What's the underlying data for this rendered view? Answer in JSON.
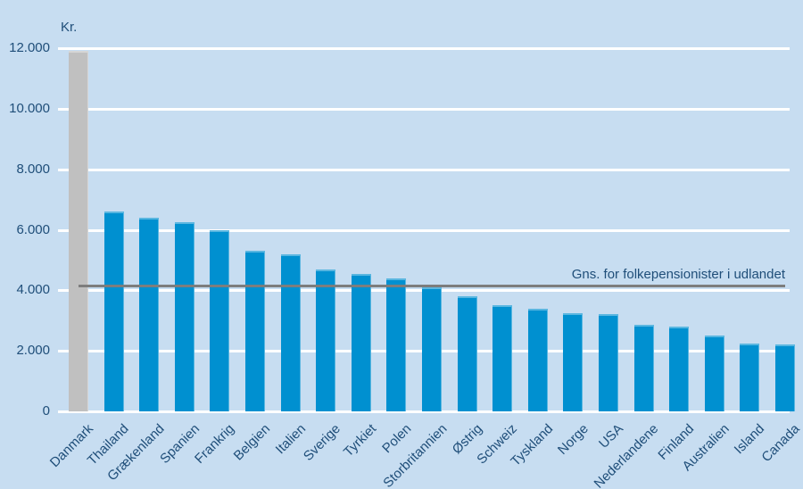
{
  "chart_data": {
    "type": "bar",
    "title": "",
    "unit_label": "Kr.",
    "xlabel": "",
    "ylabel": "Kr.",
    "categories": [
      "Danmark",
      "Thailand",
      "Grækenland",
      "Spanien",
      "Frankrig",
      "Belgien",
      "Italien",
      "Sverige",
      "Tyrkiet",
      "Polen",
      "Storbritannien",
      "Østrig",
      "Schweiz",
      "Tyskland",
      "Norge",
      "USA",
      "Nederlandene",
      "Finland",
      "Australien",
      "Island",
      "Canada"
    ],
    "values": [
      11900,
      6600,
      6400,
      6250,
      6000,
      5300,
      5200,
      4700,
      4550,
      4400,
      4100,
      3800,
      3500,
      3400,
      3250,
      3200,
      2850,
      2800,
      2500,
      2250,
      2200
    ],
    "ylim": [
      0,
      12000
    ],
    "ytick_step": 2000,
    "ytick_labels": [
      "0",
      "2.000",
      "4.000",
      "6.000",
      "8.000",
      "10.000",
      "12.000"
    ],
    "grid": "horizontal, white gridlines, legend none",
    "reference_line": {
      "value": 4150,
      "label": "Gns. for folkepensionister  i udlandet"
    },
    "colors": {
      "background": "#c7ddf1",
      "bar_default": "#0090d0",
      "bar_highlight": "#c0c0c0",
      "highlight_index": 0,
      "reference_line": "#7d7d7d",
      "text": "#1f4e79",
      "gridline": "#ffffff"
    }
  }
}
